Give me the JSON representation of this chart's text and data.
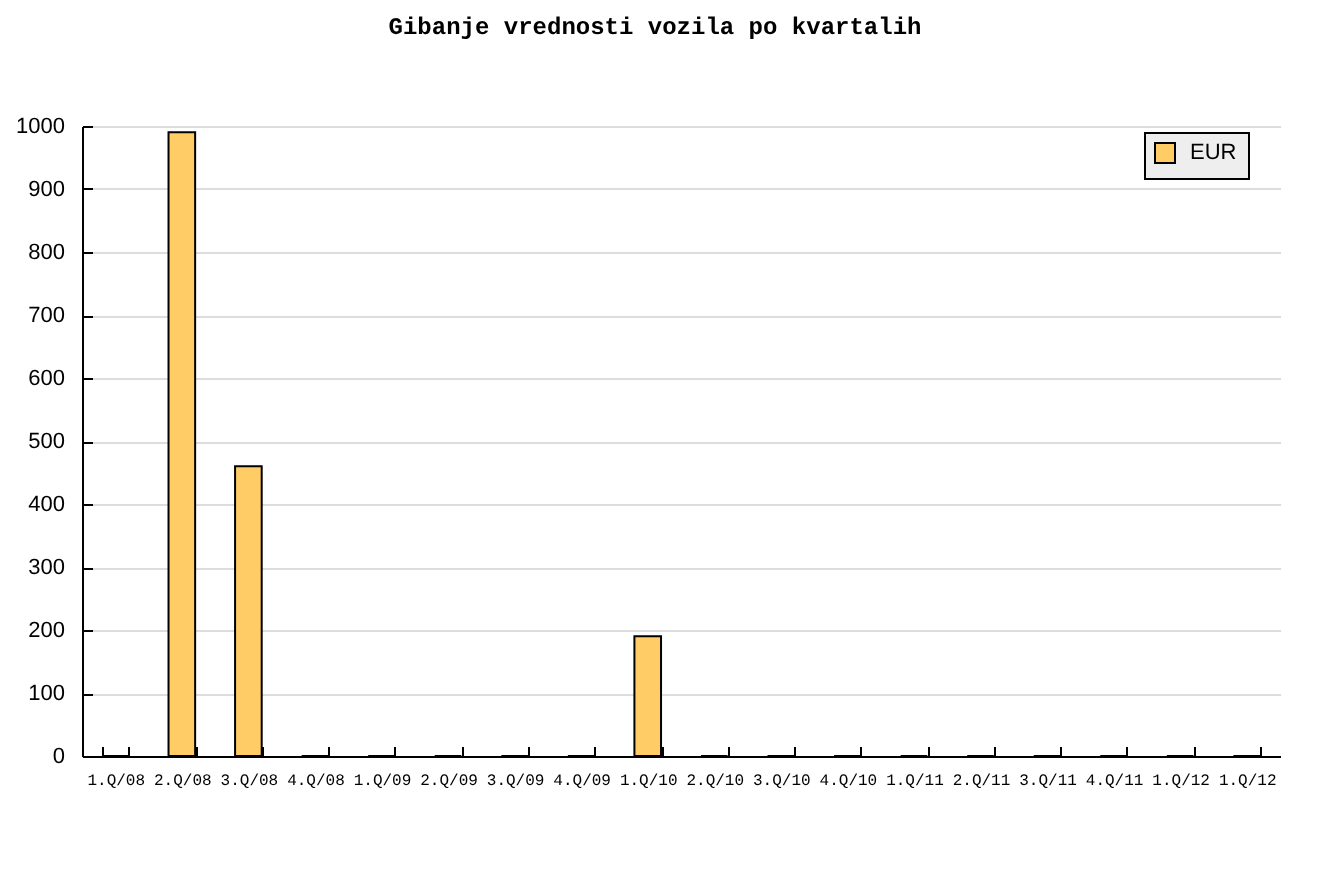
{
  "chart_data": {
    "type": "bar",
    "title": "Gibanje vrednosti vozila po kvartalih",
    "categories": [
      "1.Q/08",
      "2.Q/08",
      "3.Q/08",
      "4.Q/08",
      "1.Q/09",
      "2.Q/09",
      "3.Q/09",
      "4.Q/09",
      "1.Q/10",
      "2.Q/10",
      "3.Q/10",
      "4.Q/10",
      "1.Q/11",
      "2.Q/11",
      "3.Q/11",
      "4.Q/11",
      "1.Q/12",
      "1.Q/12"
    ],
    "series": [
      {
        "name": "EUR",
        "color": "#ffcc66",
        "values": [
          0,
          990,
          460,
          0,
          0,
          0,
          0,
          0,
          190,
          0,
          0,
          0,
          0,
          0,
          0,
          0,
          0,
          0
        ]
      }
    ],
    "ylim": [
      0,
      1000
    ],
    "yticks": [
      0,
      100,
      200,
      300,
      400,
      500,
      600,
      700,
      800,
      900,
      1000
    ],
    "grid": "y",
    "legend": "top right"
  }
}
